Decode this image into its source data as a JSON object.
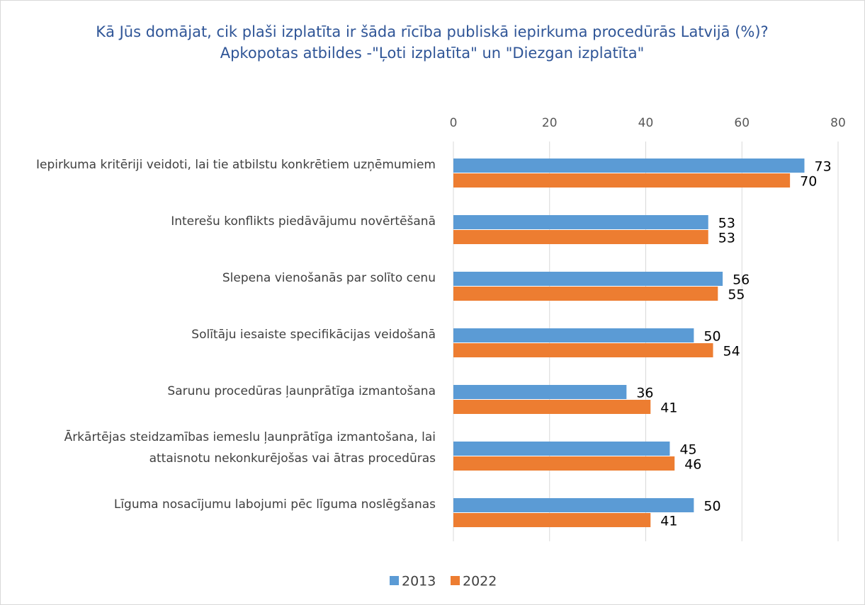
{
  "chart_data": {
    "type": "bar",
    "orientation": "horizontal",
    "title": "Kā Jūs domājat, cik plaši izplatīta ir šāda rīcība publiskā iepirkuma procedūrās Latvijā (%)? Apkopotas atbildes -\"Ļoti izplatīta\" un \"Diezgan izplatīta\"",
    "categories": [
      "Iepirkuma kritēriji veidoti, lai tie atbilstu konkrētiem uzņēmumiem",
      "Interešu konflikts piedāvājumu novērtēšanā",
      "Slepena vienošanās par solīto cenu",
      "Solītāju iesaiste specifikācijas veidošanā",
      "Sarunu procedūras ļaunprātīga izmantošana",
      "Ārkārtējas steidzamības iemeslu ļaunprātīga izmantošana, lai attaisnotu nekonkurējošas vai ātras procedūras",
      "Līguma nosacījumu labojumi pēc līguma noslēgšanas"
    ],
    "series": [
      {
        "name": "2013",
        "color": "#5b9bd5",
        "values": [
          73,
          53,
          56,
          50,
          36,
          45,
          50
        ]
      },
      {
        "name": "2022",
        "color": "#ed7d31",
        "values": [
          70,
          53,
          55,
          54,
          41,
          46,
          41
        ]
      }
    ],
    "xlim": [
      0,
      80
    ],
    "xticks": [
      0,
      20,
      40,
      60,
      80
    ],
    "grid": true,
    "legend": "bottom"
  }
}
